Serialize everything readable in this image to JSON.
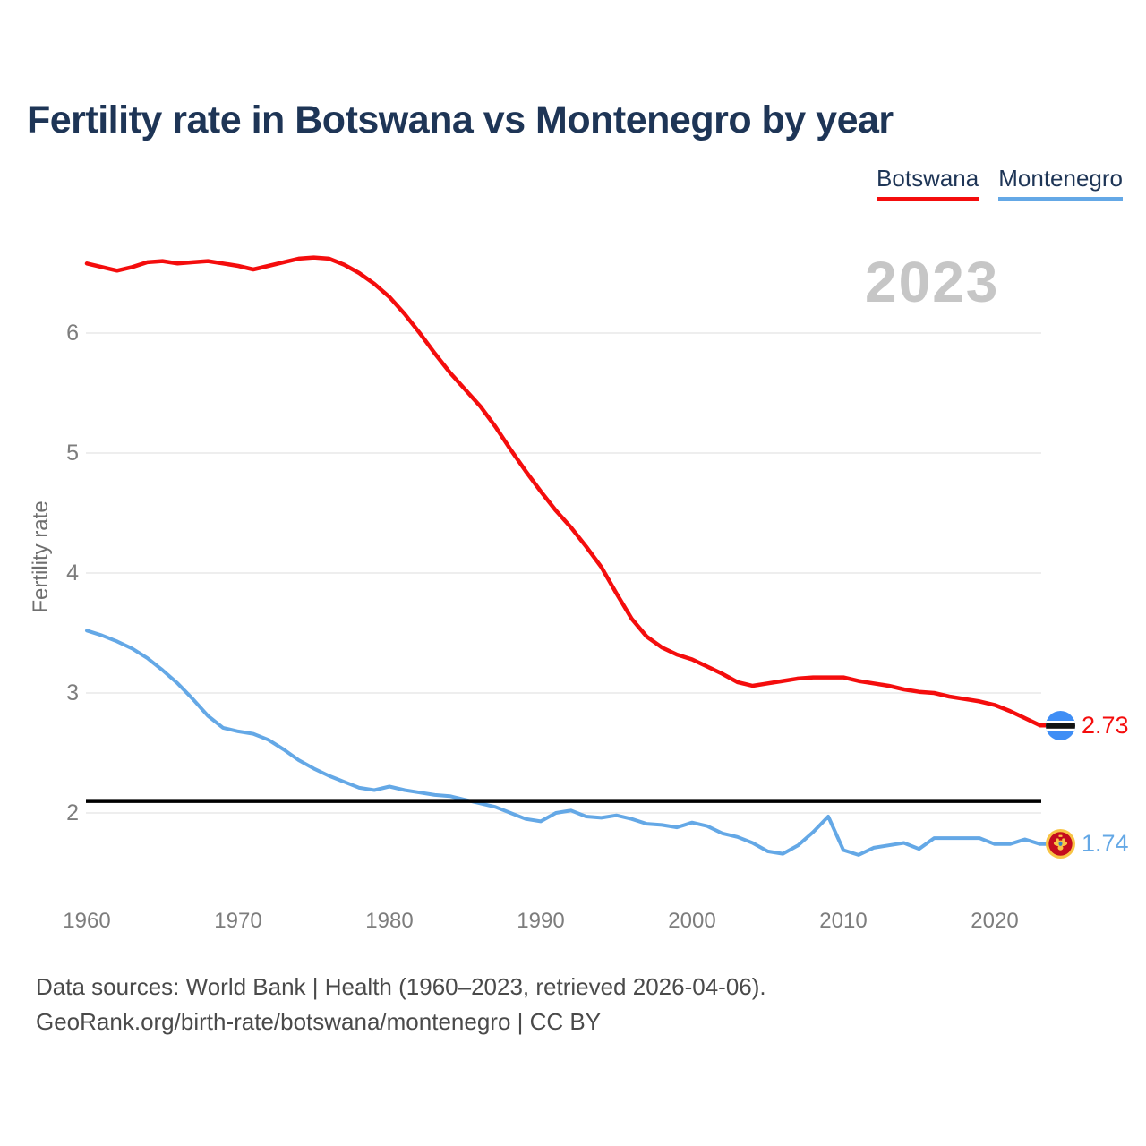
{
  "title": "Fertility rate in Botswana vs Montenegro by year",
  "watermark": "2023",
  "legend": [
    {
      "label": "Botswana",
      "color": "#f40d0d"
    },
    {
      "label": "Montenegro",
      "color": "#64a8e6"
    }
  ],
  "end_labels": {
    "botswana": {
      "value": "2.73",
      "flag": "botswana-flag",
      "color": "#f40d0d"
    },
    "montenegro": {
      "value": "1.74",
      "flag": "montenegro-flag",
      "color": "#64a8e6"
    }
  },
  "footer": {
    "line1": "Data sources: World Bank | Health (1960–2023, retrieved 2026-04-06).",
    "line2": "GeoRank.org/birth-rate/botswana/montenegro | CC BY"
  },
  "colors": {
    "title_navy": "#1e3556",
    "gridline": "#e9e9e9",
    "axis_text": "#7d7d7d",
    "reference_line": "#000000",
    "watermark_gray": "#c6c6c6"
  },
  "chart_data": {
    "type": "line",
    "title": "Fertility rate in Botswana vs Montenegro by year",
    "xlabel": "",
    "ylabel": "Fertility rate",
    "xlim": [
      1960,
      2023
    ],
    "ylim": [
      1.45,
      6.8
    ],
    "grid": true,
    "legend_position": "top-right",
    "y_ticks": [
      2,
      3,
      4,
      5,
      6
    ],
    "x_ticks": [
      1960,
      1970,
      1980,
      1990,
      2000,
      2010,
      2020
    ],
    "reference_line": {
      "value": 2.1,
      "color": "#000000"
    },
    "x": [
      1960,
      1961,
      1962,
      1963,
      1964,
      1965,
      1966,
      1967,
      1968,
      1969,
      1970,
      1971,
      1972,
      1973,
      1974,
      1975,
      1976,
      1977,
      1978,
      1979,
      1980,
      1981,
      1982,
      1983,
      1984,
      1985,
      1986,
      1987,
      1988,
      1989,
      1990,
      1991,
      1992,
      1993,
      1994,
      1995,
      1996,
      1997,
      1998,
      1999,
      2000,
      2001,
      2002,
      2003,
      2004,
      2005,
      2006,
      2007,
      2008,
      2009,
      2010,
      2011,
      2012,
      2013,
      2014,
      2015,
      2016,
      2017,
      2018,
      2019,
      2020,
      2021,
      2022,
      2023
    ],
    "series": [
      {
        "name": "Botswana",
        "color": "#f40d0d",
        "final_value": 2.73,
        "values": [
          6.58,
          6.55,
          6.52,
          6.55,
          6.59,
          6.6,
          6.58,
          6.59,
          6.6,
          6.58,
          6.56,
          6.53,
          6.56,
          6.59,
          6.62,
          6.63,
          6.62,
          6.57,
          6.5,
          6.41,
          6.3,
          6.16,
          6.0,
          5.83,
          5.67,
          5.53,
          5.39,
          5.22,
          5.03,
          4.85,
          4.68,
          4.52,
          4.38,
          4.22,
          4.05,
          3.83,
          3.62,
          3.47,
          3.38,
          3.32,
          3.28,
          3.22,
          3.16,
          3.09,
          3.06,
          3.08,
          3.1,
          3.12,
          3.13,
          3.13,
          3.13,
          3.1,
          3.08,
          3.06,
          3.03,
          3.01,
          3.0,
          2.97,
          2.95,
          2.93,
          2.9,
          2.85,
          2.79,
          2.73
        ]
      },
      {
        "name": "Montenegro",
        "color": "#64a8e6",
        "final_value": 1.74,
        "values": [
          3.52,
          3.48,
          3.43,
          3.37,
          3.29,
          3.19,
          3.08,
          2.95,
          2.81,
          2.71,
          2.68,
          2.66,
          2.61,
          2.53,
          2.44,
          2.37,
          2.31,
          2.26,
          2.21,
          2.19,
          2.22,
          2.19,
          2.17,
          2.15,
          2.14,
          2.11,
          2.08,
          2.05,
          2.0,
          1.95,
          1.93,
          2.0,
          2.02,
          1.97,
          1.96,
          1.98,
          1.95,
          1.91,
          1.9,
          1.88,
          1.92,
          1.89,
          1.83,
          1.8,
          1.75,
          1.68,
          1.66,
          1.73,
          1.84,
          1.97,
          1.69,
          1.65,
          1.71,
          1.73,
          1.75,
          1.7,
          1.79,
          1.79,
          1.79,
          1.79,
          1.74,
          1.74,
          1.78,
          1.74
        ]
      }
    ]
  }
}
